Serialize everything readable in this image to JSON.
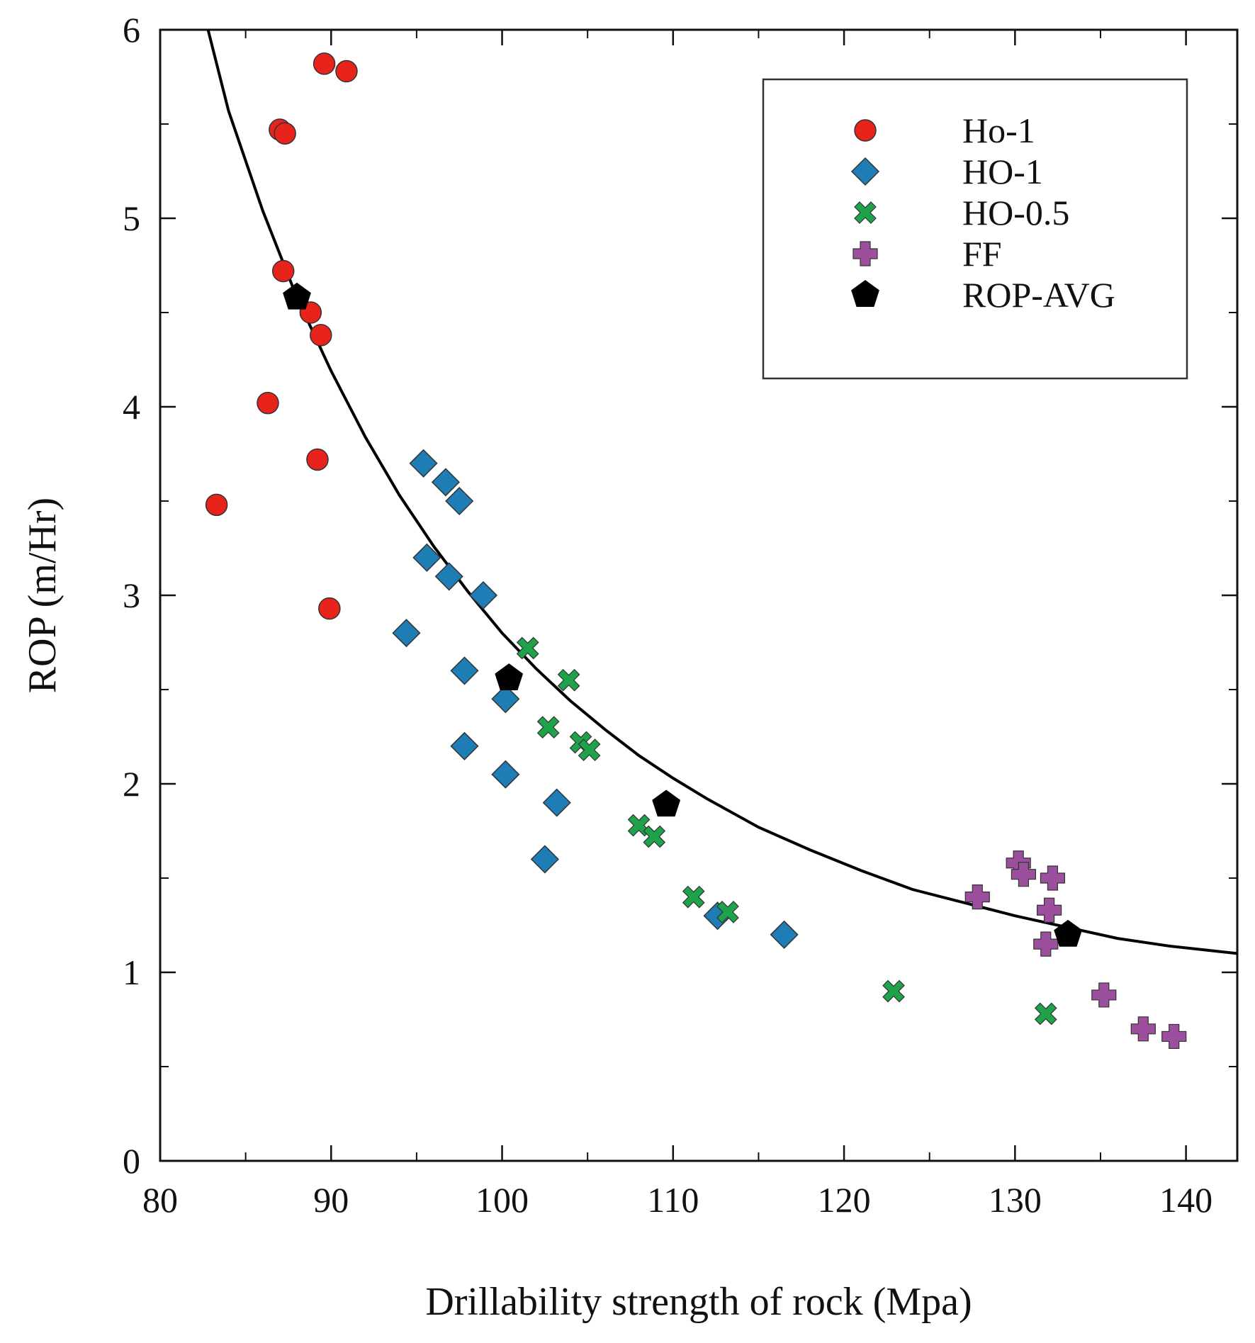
{
  "chart_data": {
    "type": "scatter",
    "title": "",
    "xlabel": "Drillability strength of rock  (Mpa)",
    "ylabel": "ROP (m/Hr)",
    "xlim": [
      80,
      143
    ],
    "ylim": [
      0,
      6
    ],
    "x_ticks": [
      80,
      90,
      100,
      110,
      120,
      130,
      140
    ],
    "y_ticks": [
      0,
      1,
      2,
      3,
      4,
      5,
      6
    ],
    "grid": false,
    "legend_position": "top-right",
    "series": [
      {
        "name": "Ho-1",
        "marker": "circle",
        "color": "#e8231c",
        "points": [
          {
            "x": 83.3,
            "y": 3.48
          },
          {
            "x": 86.3,
            "y": 4.02
          },
          {
            "x": 87.0,
            "y": 5.47
          },
          {
            "x": 87.3,
            "y": 5.45
          },
          {
            "x": 87.2,
            "y": 4.72
          },
          {
            "x": 88.8,
            "y": 4.5
          },
          {
            "x": 89.4,
            "y": 4.38
          },
          {
            "x": 89.2,
            "y": 3.72
          },
          {
            "x": 89.9,
            "y": 2.93
          },
          {
            "x": 89.6,
            "y": 5.82
          },
          {
            "x": 90.9,
            "y": 5.78
          }
        ]
      },
      {
        "name": "HO-1",
        "marker": "diamond",
        "color": "#1f7db5",
        "points": [
          {
            "x": 95.4,
            "y": 3.7
          },
          {
            "x": 96.7,
            "y": 3.6
          },
          {
            "x": 97.5,
            "y": 3.5
          },
          {
            "x": 95.6,
            "y": 3.2
          },
          {
            "x": 96.9,
            "y": 3.1
          },
          {
            "x": 98.9,
            "y": 3.0
          },
          {
            "x": 94.4,
            "y": 2.8
          },
          {
            "x": 97.8,
            "y": 2.6
          },
          {
            "x": 100.2,
            "y": 2.45
          },
          {
            "x": 97.8,
            "y": 2.2
          },
          {
            "x": 100.2,
            "y": 2.05
          },
          {
            "x": 103.2,
            "y": 1.9
          },
          {
            "x": 102.5,
            "y": 1.6
          },
          {
            "x": 112.6,
            "y": 1.3
          },
          {
            "x": 116.5,
            "y": 1.2
          }
        ]
      },
      {
        "name": "HO-0.5",
        "marker": "x",
        "color": "#1ea24a",
        "points": [
          {
            "x": 101.5,
            "y": 2.72
          },
          {
            "x": 103.9,
            "y": 2.55
          },
          {
            "x": 102.7,
            "y": 2.3
          },
          {
            "x": 104.6,
            "y": 2.22
          },
          {
            "x": 105.1,
            "y": 2.18
          },
          {
            "x": 108.0,
            "y": 1.78
          },
          {
            "x": 108.9,
            "y": 1.72
          },
          {
            "x": 111.2,
            "y": 1.4
          },
          {
            "x": 113.2,
            "y": 1.32
          },
          {
            "x": 122.9,
            "y": 0.9
          },
          {
            "x": 131.8,
            "y": 0.78
          }
        ]
      },
      {
        "name": "FF",
        "marker": "plus",
        "color": "#9b4f9c",
        "points": [
          {
            "x": 127.8,
            "y": 1.4
          },
          {
            "x": 130.2,
            "y": 1.58
          },
          {
            "x": 130.5,
            "y": 1.52
          },
          {
            "x": 132.2,
            "y": 1.5
          },
          {
            "x": 132.0,
            "y": 1.33
          },
          {
            "x": 131.8,
            "y": 1.15
          },
          {
            "x": 135.2,
            "y": 0.88
          },
          {
            "x": 137.5,
            "y": 0.7
          },
          {
            "x": 139.3,
            "y": 0.66
          }
        ]
      },
      {
        "name": "ROP-AVG",
        "marker": "pentagon",
        "color": "#000000",
        "points": [
          {
            "x": 88.0,
            "y": 4.58
          },
          {
            "x": 100.4,
            "y": 2.56
          },
          {
            "x": 109.6,
            "y": 1.89
          },
          {
            "x": 133.1,
            "y": 1.2
          }
        ]
      }
    ],
    "fit_curve": {
      "color": "#000000",
      "x": [
        82.8,
        84,
        86,
        88,
        90,
        92,
        94,
        96,
        98,
        100,
        102,
        104,
        106,
        108,
        110,
        112,
        115,
        118,
        121,
        124,
        127,
        130,
        133,
        136,
        139,
        142,
        143
      ],
      "y": [
        6.0,
        5.57,
        5.04,
        4.58,
        4.19,
        3.84,
        3.53,
        3.26,
        3.02,
        2.8,
        2.61,
        2.44,
        2.29,
        2.15,
        2.03,
        1.92,
        1.77,
        1.65,
        1.54,
        1.44,
        1.37,
        1.3,
        1.24,
        1.18,
        1.14,
        1.11,
        1.1
      ]
    }
  }
}
